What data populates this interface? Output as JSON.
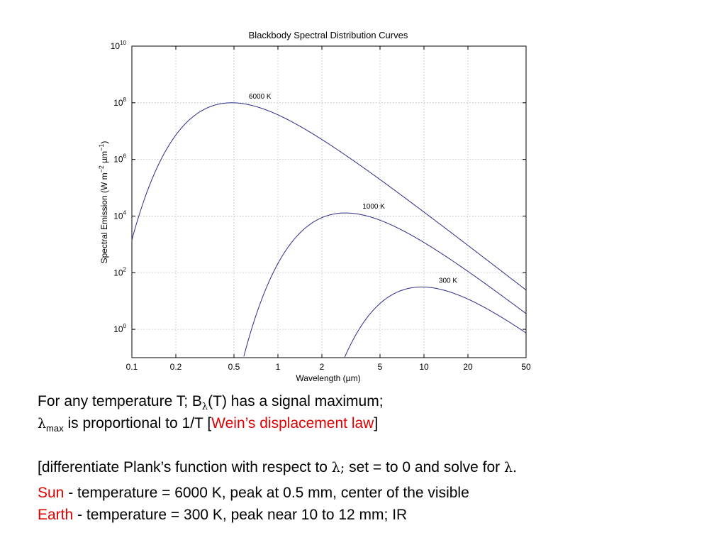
{
  "chart_data": {
    "type": "line",
    "title": "Blackbody Spectral Distribution Curves",
    "xlabel": "Wavelength (µm)",
    "ylabel": {
      "main": "Spectral Emission (W m",
      "exp1": "−2",
      "mid": " µm",
      "exp2": "−1",
      "end": ")"
    },
    "x_scale": "log",
    "y_scale": "log",
    "xlim": [
      0.1,
      50
    ],
    "ylim": [
      0.1,
      10000000000.0
    ],
    "x_ticks": [
      {
        "value": 0.1,
        "label": "0.1"
      },
      {
        "value": 0.2,
        "label": "0.2"
      },
      {
        "value": 0.5,
        "label": "0.5"
      },
      {
        "value": 1,
        "label": "1"
      },
      {
        "value": 2,
        "label": "2"
      },
      {
        "value": 5,
        "label": "5"
      },
      {
        "value": 10,
        "label": "10"
      },
      {
        "value": 20,
        "label": "20"
      },
      {
        "value": 50,
        "label": "50"
      }
    ],
    "y_ticks": [
      {
        "value": 1,
        "base": "10",
        "exp": "0"
      },
      {
        "value": 100,
        "base": "10",
        "exp": "2"
      },
      {
        "value": 10000,
        "base": "10",
        "exp": "4"
      },
      {
        "value": 1000000,
        "base": "10",
        "exp": "6"
      },
      {
        "value": 100000000,
        "base": "10",
        "exp": "8"
      },
      {
        "value": 10000000000,
        "base": "10",
        "exp": "10"
      }
    ],
    "grid": true,
    "line_color": "#2b2b8a",
    "series": [
      {
        "name": "6000 K",
        "temperature": 6000,
        "peak_x": 0.483,
        "peak_y": 100000000.0
      },
      {
        "name": "1000 K",
        "temperature": 1000,
        "peak_x": 2.9,
        "peak_y": 12900.0
      },
      {
        "name": "300 K",
        "temperature": 300,
        "peak_x": 9.66,
        "peak_y": 31.3
      }
    ]
  },
  "text": {
    "line1_a": "For any temperature T; B",
    "line1_sub": "λ",
    "line1_b": "(T) has a signal maximum;",
    "line2_lambda": "λ",
    "line2_sub": "max",
    "line2_a": " is proportional to 1/T [",
    "line2_red": "Wein’s displacement law",
    "line2_b": "]",
    "line3_a": "[differentiate Plank’s function with respect to ",
    "line3_l1": "λ;",
    "line3_b": " set = to 0 and solve for ",
    "line3_l2": "λ.",
    "line4_red": "Sun",
    "line4_b": " - temperature =  6000 K,  peak at 0.5 mm, center of the visible",
    "line5_red": "Earth",
    "line5_b": " - temperature = 300 K,   peak near 10 to 12 mm; IR"
  }
}
